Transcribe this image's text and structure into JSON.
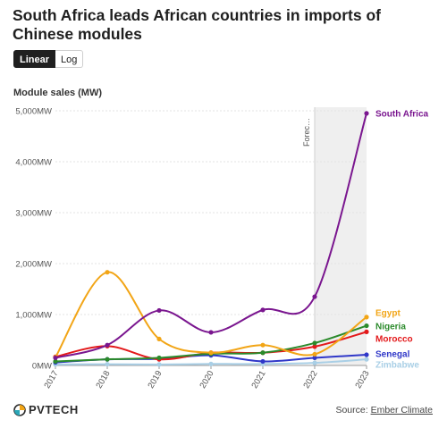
{
  "header": {
    "title": "South Africa leads African countries in imports of Chinese modules"
  },
  "toggle": {
    "linear_label": "Linear",
    "log_label": "Log"
  },
  "logo": {
    "text": "PVTECH"
  },
  "source": {
    "prefix": "Source: ",
    "link_text": "Ember Climate"
  },
  "colors": {
    "south_africa": "#7a168f",
    "egypt": "#f2a516",
    "nigeria": "#2b8a2b",
    "morocco": "#e3191b",
    "senegal": "#2f37c8",
    "zimbabwe": "#a9cfe6",
    "forecast_band": "#efefef"
  },
  "chart_data": {
    "type": "line",
    "title": "South Africa leads African countries in imports of Chinese modules",
    "ylabel": "Module sales (MW)",
    "xlabel": "",
    "x": [
      "2017",
      "2018",
      "2019",
      "2020",
      "2021",
      "2022",
      "2023"
    ],
    "ylim": [
      0,
      5000
    ],
    "yticks": [
      0,
      1000,
      2000,
      3000,
      4000,
      5000
    ],
    "ytick_labels": [
      "0MW",
      "1,000MW",
      "2,000MW",
      "3,000MW",
      "4,000MW",
      "5,000MW"
    ],
    "grid": true,
    "forecast": {
      "label": "Forec…",
      "from": "2022",
      "to": "2023"
    },
    "series": [
      {
        "name": "South Africa",
        "color": "#7a168f",
        "values": [
          150,
          400,
          1080,
          650,
          1090,
          1350,
          4950
        ]
      },
      {
        "name": "Egypt",
        "color": "#f2a516",
        "values": [
          160,
          1830,
          520,
          250,
          400,
          220,
          950
        ]
      },
      {
        "name": "Nigeria",
        "color": "#2b8a2b",
        "values": [
          80,
          120,
          150,
          230,
          250,
          440,
          780
        ]
      },
      {
        "name": "Morocco",
        "color": "#e3191b",
        "values": [
          170,
          380,
          120,
          250,
          250,
          370,
          660
        ]
      },
      {
        "name": "Senegal",
        "color": "#2f37c8",
        "values": [
          60,
          120,
          130,
          200,
          80,
          150,
          210
        ]
      },
      {
        "name": "Zimbabwe",
        "color": "#a9cfe6",
        "values": [
          20,
          25,
          20,
          30,
          30,
          50,
          120
        ]
      }
    ]
  }
}
